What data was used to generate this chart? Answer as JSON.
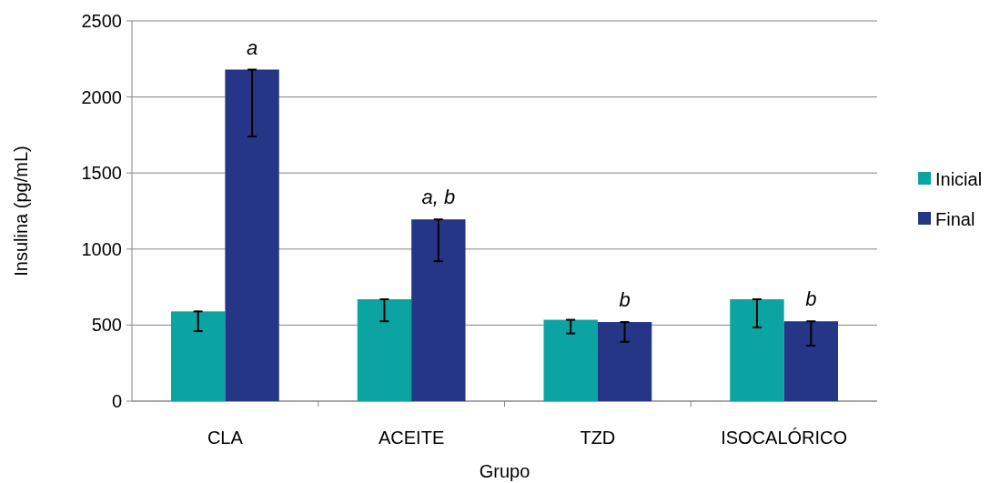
{
  "chart_data": {
    "type": "bar",
    "xlabel": "Grupo",
    "ylabel": "Insulina (pg/mL)",
    "categories": [
      "CLA",
      "ACEITE",
      "TZD",
      "ISOCALÓRICO"
    ],
    "series": [
      {
        "name": "Inicial",
        "color": "#0ca3a3",
        "values": [
          590,
          670,
          535,
          670
        ],
        "errors": [
          [
            460,
            590
          ],
          [
            525,
            670
          ],
          [
            445,
            535
          ],
          [
            485,
            670
          ]
        ]
      },
      {
        "name": "Final",
        "color": "#253686",
        "values": [
          2180,
          1195,
          520,
          525
        ],
        "errors": [
          [
            1740,
            2180
          ],
          [
            920,
            1195
          ],
          [
            390,
            520
          ],
          [
            365,
            525
          ]
        ]
      }
    ],
    "ylim": [
      0,
      2500
    ],
    "yticks": [
      0,
      500,
      1000,
      1500,
      2000,
      2500
    ],
    "grid": "y",
    "legend": "right",
    "annotations": [
      {
        "text": "a",
        "x": "CLA",
        "y": 2180
      },
      {
        "text": "a, b",
        "x": "ACEITE",
        "y": 1195
      },
      {
        "text": "b",
        "x": "TZD",
        "y": 520
      },
      {
        "text": "b",
        "x": "ISOCALÓRICO",
        "y": 525
      }
    ]
  }
}
